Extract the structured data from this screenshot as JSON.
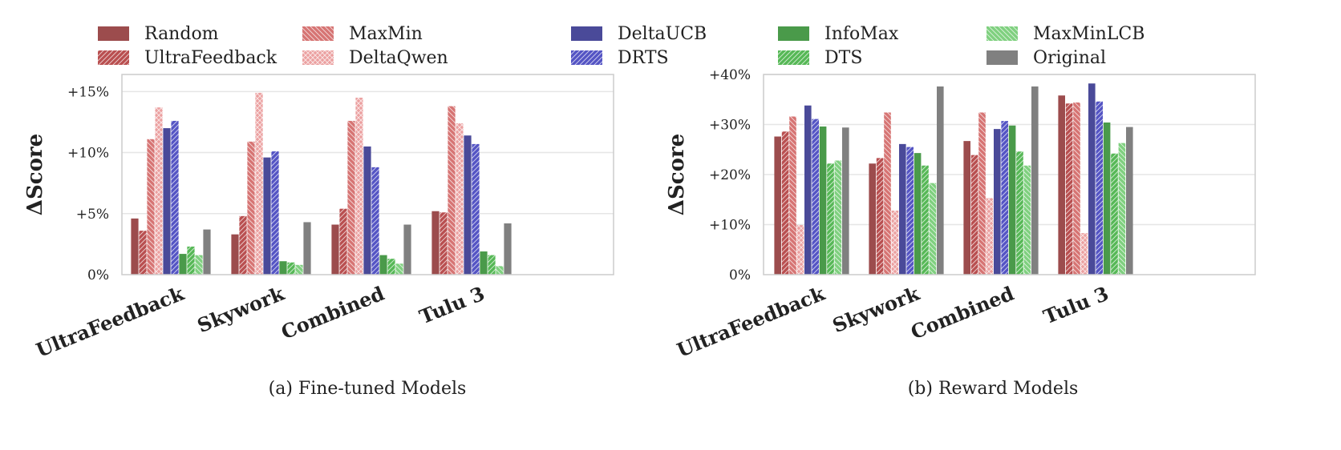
{
  "legend": [
    {
      "name": "Random",
      "color": "#9c4c4d",
      "pattern": "solid"
    },
    {
      "name": "UltraFeedback",
      "color": "#b94f50",
      "pattern": "slash"
    },
    {
      "name": "MaxMin",
      "color": "#d67473",
      "pattern": "backslash"
    },
    {
      "name": "DeltaQwen",
      "color": "#eba0a0",
      "pattern": "cross"
    },
    {
      "name": "DeltaUCB",
      "color": "#4a4a99",
      "pattern": "solid"
    },
    {
      "name": "DRTS",
      "color": "#5454c4",
      "pattern": "slash"
    },
    {
      "name": "InfoMax",
      "color": "#4a9a4a",
      "pattern": "solid"
    },
    {
      "name": "DTS",
      "color": "#56b856",
      "pattern": "slash"
    },
    {
      "name": "MaxMinLCB",
      "color": "#7fd07f",
      "pattern": "backslash"
    },
    {
      "name": "Original",
      "color": "#808080",
      "pattern": "solid"
    }
  ],
  "chart_data": [
    {
      "type": "bar",
      "caption": "(a) Fine-tuned Models",
      "ylabel": "ΔScore",
      "categories": [
        "UltraFeedback",
        "Skywork",
        "Combined",
        "Tulu 3"
      ],
      "yticks": [
        0,
        5,
        10,
        15
      ],
      "ytick_labels": [
        "0%",
        "+5%",
        "+10%",
        "+15%"
      ],
      "ylim": [
        0,
        16.5
      ],
      "grid": true,
      "legend_position": "top",
      "series": [
        {
          "name": "Random",
          "values": [
            4.6,
            3.3,
            4.1,
            5.2
          ]
        },
        {
          "name": "UltraFeedback",
          "values": [
            3.6,
            4.8,
            5.4,
            5.1
          ]
        },
        {
          "name": "MaxMin",
          "values": [
            11.1,
            10.9,
            12.6,
            13.8
          ]
        },
        {
          "name": "DeltaQwen",
          "values": [
            13.7,
            14.9,
            14.5,
            12.4
          ]
        },
        {
          "name": "DeltaUCB",
          "values": [
            12.0,
            9.6,
            10.5,
            11.4
          ]
        },
        {
          "name": "DRTS",
          "values": [
            12.6,
            10.1,
            8.8,
            10.7
          ]
        },
        {
          "name": "InfoMax",
          "values": [
            1.7,
            1.1,
            1.6,
            1.9
          ]
        },
        {
          "name": "DTS",
          "values": [
            2.3,
            1.0,
            1.3,
            1.6
          ]
        },
        {
          "name": "MaxMinLCB",
          "values": [
            1.6,
            0.8,
            0.9,
            0.7
          ]
        },
        {
          "name": "Original",
          "values": [
            3.7,
            4.3,
            4.1,
            4.2
          ]
        }
      ]
    },
    {
      "type": "bar",
      "caption": "(b) Reward Models",
      "ylabel": "ΔScore",
      "categories": [
        "UltraFeedback",
        "Skywork",
        "Combined",
        "Tulu 3"
      ],
      "yticks": [
        0,
        10,
        20,
        30,
        40
      ],
      "ytick_labels": [
        "0%",
        "+10%",
        "+20%",
        "+30%",
        "+40%"
      ],
      "ylim": [
        0,
        40
      ],
      "grid": true,
      "legend_position": "top",
      "series": [
        {
          "name": "Random",
          "values": [
            27.6,
            22.2,
            26.7,
            35.8
          ]
        },
        {
          "name": "UltraFeedback",
          "values": [
            28.6,
            23.3,
            23.9,
            34.2
          ]
        },
        {
          "name": "MaxMin",
          "values": [
            31.6,
            32.4,
            32.4,
            34.4
          ]
        },
        {
          "name": "DeltaQwen",
          "values": [
            9.9,
            12.8,
            15.3,
            8.3
          ]
        },
        {
          "name": "DeltaUCB",
          "values": [
            33.8,
            26.1,
            29.1,
            38.2
          ]
        },
        {
          "name": "DRTS",
          "values": [
            31.1,
            25.5,
            30.7,
            34.6
          ]
        },
        {
          "name": "InfoMax",
          "values": [
            29.6,
            24.3,
            29.8,
            30.4
          ]
        },
        {
          "name": "DTS",
          "values": [
            22.2,
            21.8,
            24.6,
            24.2
          ]
        },
        {
          "name": "MaxMinLCB",
          "values": [
            22.8,
            18.3,
            21.8,
            26.3
          ]
        },
        {
          "name": "Original",
          "values": [
            29.4,
            37.6,
            37.6,
            29.5
          ]
        }
      ]
    }
  ]
}
